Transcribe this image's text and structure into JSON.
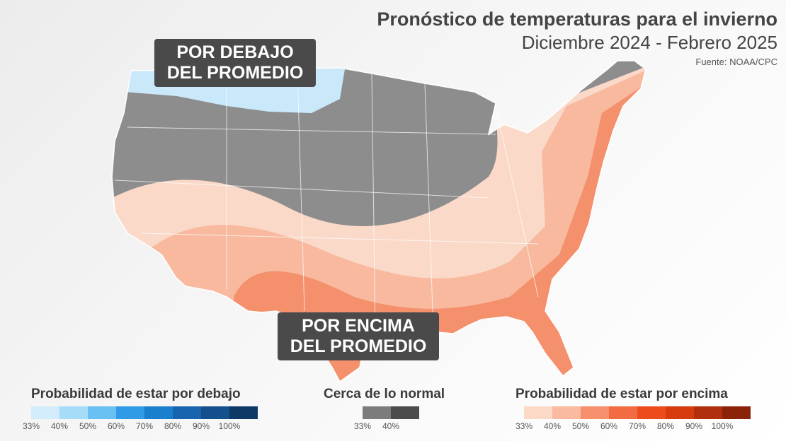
{
  "header": {
    "title": "Pronóstico de temperaturas para el invierno",
    "subtitle": "Diciembre 2024 - Febrero 2025",
    "source": "Fuente: NOAA/CPC"
  },
  "callouts": {
    "below_line1": "POR DEBAJO",
    "below_line2": "DEL PROMEDIO",
    "above_line1": "POR ENCIMA",
    "above_line2": "DEL PROMEDIO"
  },
  "legend": {
    "below": {
      "title": "Probabilidad de estar por debajo",
      "colors": [
        "#d3ecfb",
        "#a6dcf8",
        "#68c1f2",
        "#2f9ae6",
        "#1b7fd0",
        "#1763ad",
        "#14508e",
        "#0e3866"
      ],
      "ticks": [
        "33%",
        "40%",
        "50%",
        "60%",
        "70%",
        "80%",
        "90%",
        "100%"
      ]
    },
    "normal": {
      "title": "Cerca de lo normal",
      "colors": [
        "#7c7c7c",
        "#4b4b4b"
      ],
      "ticks": [
        "33%",
        "40%"
      ]
    },
    "above": {
      "title": "Probabilidad de estar por encima",
      "colors": [
        "#fcd8c7",
        "#fbb9a0",
        "#f68f6b",
        "#f26b42",
        "#ee4b1d",
        "#d63b0d",
        "#b12f0c",
        "#8a230a"
      ],
      "ticks": [
        "33%",
        "40%",
        "50%",
        "60%",
        "70%",
        "80%",
        "90%",
        "100%"
      ]
    }
  }
}
